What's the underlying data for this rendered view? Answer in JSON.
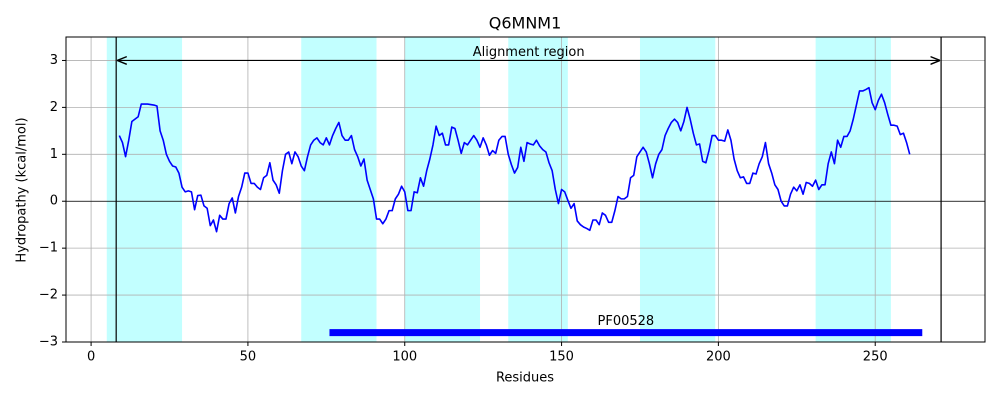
{
  "chart_data": {
    "type": "line",
    "title": "Q6MNM1",
    "x_label": "Residues",
    "y_label": "Hydropathy (kcal/mol)",
    "xlim": [
      -8,
      285
    ],
    "ylim": [
      -3,
      3.5
    ],
    "xticks": [
      0,
      50,
      100,
      150,
      200,
      250
    ],
    "yticks": [
      {
        "value": -3,
        "label": "−3"
      },
      {
        "value": -2,
        "label": "−2"
      },
      {
        "value": -1,
        "label": "−1"
      },
      0,
      1,
      2,
      3
    ],
    "grid": true,
    "zero_line": true,
    "regions": [
      [
        5,
        29
      ],
      [
        67,
        91
      ],
      [
        100,
        124
      ],
      [
        133,
        152
      ],
      [
        175,
        199
      ],
      [
        231,
        255
      ]
    ],
    "region_color": "#c2ffff",
    "alignment": {
      "label": "Alignment region",
      "start": 8,
      "end": 271
    },
    "domain": {
      "label": "PF00528",
      "start": 76,
      "end": 265,
      "y": -2.8,
      "color": "#0000ff"
    },
    "series": [
      {
        "color": "#0000ff",
        "x": [
          9,
          10,
          11,
          12,
          13,
          14,
          15,
          16,
          17,
          18,
          19,
          20,
          21,
          22,
          23,
          24,
          25,
          26,
          27,
          28,
          29,
          30,
          31,
          32,
          33,
          34,
          35,
          36,
          37,
          38,
          39,
          40,
          41,
          42,
          43,
          44,
          45,
          46,
          47,
          48,
          49,
          50,
          51,
          52,
          53,
          54,
          55,
          56,
          57,
          58,
          59,
          60,
          61,
          62,
          63,
          64,
          65,
          66,
          67,
          68,
          69,
          70,
          71,
          72,
          73,
          74,
          75,
          76,
          77,
          78,
          79,
          80,
          81,
          82,
          83,
          84,
          85,
          86,
          87,
          88,
          89,
          90,
          91,
          92,
          93,
          94,
          95,
          96,
          97,
          98,
          99,
          100,
          101,
          102,
          103,
          104,
          105,
          106,
          107,
          108,
          109,
          110,
          111,
          112,
          113,
          114,
          115,
          116,
          117,
          118,
          119,
          120,
          121,
          122,
          123,
          124,
          125,
          126,
          127,
          128,
          129,
          130,
          131,
          132,
          133,
          134,
          135,
          136,
          137,
          138,
          139,
          140,
          141,
          142,
          143,
          144,
          145,
          146,
          147,
          148,
          149,
          150,
          151,
          152,
          153,
          154,
          155,
          156,
          157,
          158,
          159,
          160,
          161,
          162,
          163,
          164,
          165,
          166,
          167,
          168,
          169,
          170,
          171,
          172,
          173,
          174,
          175,
          176,
          177,
          178,
          179,
          180,
          181,
          182,
          183,
          184,
          185,
          186,
          187,
          188,
          189,
          190,
          191,
          192,
          193,
          194,
          195,
          196,
          197,
          198,
          199,
          200,
          201,
          202,
          203,
          204,
          205,
          206,
          207,
          208,
          209,
          210,
          211,
          212,
          213,
          214,
          215,
          216,
          217,
          218,
          219,
          220,
          221,
          222,
          223,
          224,
          225,
          226,
          227,
          228,
          229,
          230,
          231,
          232,
          233,
          234,
          235,
          236,
          237,
          238,
          239,
          240,
          241,
          242,
          243,
          244,
          245,
          246,
          247,
          248,
          249,
          250,
          251,
          252,
          253,
          254,
          255,
          256,
          257,
          258,
          259,
          260,
          261
        ],
        "values": [
          1.4,
          1.25,
          0.95,
          1.3,
          1.7,
          1.75,
          1.8,
          2.07,
          2.07,
          2.07,
          2.06,
          2.05,
          2.03,
          1.5,
          1.3,
          1.0,
          0.85,
          0.75,
          0.73,
          0.6,
          0.3,
          0.2,
          0.22,
          0.2,
          -0.18,
          0.12,
          0.13,
          -0.1,
          -0.15,
          -0.52,
          -0.4,
          -0.65,
          -0.3,
          -0.38,
          -0.38,
          -0.05,
          0.07,
          -0.25,
          0.1,
          0.3,
          0.6,
          0.6,
          0.38,
          0.38,
          0.3,
          0.25,
          0.5,
          0.55,
          0.82,
          0.45,
          0.35,
          0.17,
          0.65,
          1.0,
          1.05,
          0.8,
          1.05,
          0.95,
          0.75,
          0.65,
          0.95,
          1.2,
          1.3,
          1.35,
          1.25,
          1.2,
          1.35,
          1.2,
          1.4,
          1.55,
          1.68,
          1.4,
          1.3,
          1.3,
          1.4,
          1.1,
          0.95,
          0.75,
          0.9,
          0.45,
          0.25,
          0.05,
          -0.38,
          -0.38,
          -0.48,
          -0.38,
          -0.2,
          -0.2,
          0.05,
          0.15,
          0.32,
          0.2,
          -0.2,
          -0.2,
          0.2,
          0.18,
          0.5,
          0.32,
          0.65,
          0.9,
          1.2,
          1.6,
          1.4,
          1.45,
          1.2,
          1.2,
          1.58,
          1.55,
          1.3,
          1.02,
          1.25,
          1.2,
          1.3,
          1.4,
          1.3,
          1.15,
          1.35,
          1.2,
          0.98,
          1.08,
          1.02,
          1.3,
          1.38,
          1.38,
          1.0,
          0.78,
          0.6,
          0.72,
          1.15,
          0.85,
          1.25,
          1.22,
          1.2,
          1.3,
          1.18,
          1.1,
          1.05,
          0.82,
          0.65,
          0.25,
          -0.05,
          0.25,
          0.2,
          0.02,
          -0.15,
          -0.05,
          -0.42,
          -0.5,
          -0.55,
          -0.58,
          -0.62,
          -0.4,
          -0.4,
          -0.5,
          -0.25,
          -0.3,
          -0.45,
          -0.45,
          -0.2,
          0.1,
          0.05,
          0.05,
          0.1,
          0.5,
          0.55,
          0.95,
          1.05,
          1.15,
          1.05,
          0.8,
          0.5,
          0.8,
          1.0,
          1.1,
          1.4,
          1.55,
          1.68,
          1.75,
          1.68,
          1.5,
          1.7,
          2.0,
          1.75,
          1.45,
          1.2,
          1.22,
          0.85,
          0.82,
          1.08,
          1.4,
          1.4,
          1.3,
          1.3,
          1.28,
          1.52,
          1.3,
          0.9,
          0.65,
          0.5,
          0.52,
          0.38,
          0.38,
          0.6,
          0.58,
          0.8,
          0.95,
          1.25,
          0.8,
          0.6,
          0.35,
          0.25,
          0.0,
          -0.1,
          -0.1,
          0.15,
          0.3,
          0.22,
          0.35,
          0.15,
          0.4,
          0.38,
          0.32,
          0.45,
          0.25,
          0.35,
          0.35,
          0.8,
          1.05,
          0.8,
          1.3,
          1.15,
          1.38,
          1.38,
          1.5,
          1.75,
          2.05,
          2.35,
          2.35,
          2.38,
          2.42,
          2.1,
          1.95,
          2.15,
          2.28,
          2.1,
          1.85,
          1.62,
          1.62,
          1.6,
          1.42,
          1.45,
          1.25,
          1.0
        ]
      }
    ]
  }
}
